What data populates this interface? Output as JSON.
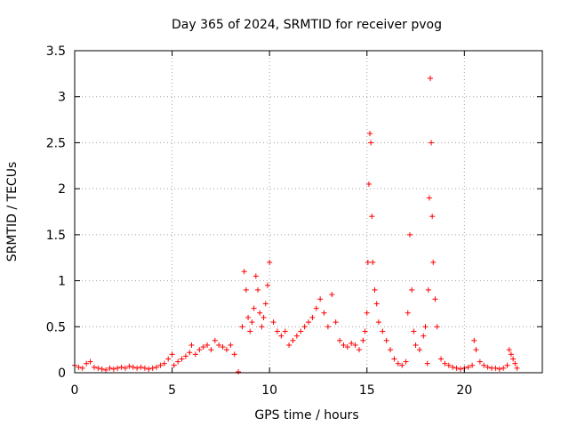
{
  "chart_data": {
    "type": "scatter",
    "title": "Day 365 of 2024, SRMTID for receiver pvog",
    "xlabel": "GPS time / hours",
    "ylabel": "SRMTID / TECUs",
    "xlim": [
      0,
      24
    ],
    "ylim": [
      0,
      3.5
    ],
    "xticks": [
      0,
      5,
      10,
      15,
      20
    ],
    "yticks": [
      0,
      0.5,
      1,
      1.5,
      2,
      2.5,
      3,
      3.5
    ],
    "xtick_labels": [
      "0",
      "5",
      "10",
      "15",
      "20"
    ],
    "ytick_labels": [
      "0",
      "0.5",
      "1",
      "1.5",
      "2",
      "2.5",
      "3",
      "3.5"
    ],
    "grid": true,
    "marker": "+",
    "color": "#ff0000",
    "series": [
      {
        "name": "SRMTID",
        "x": [
          0.0,
          0.2,
          0.4,
          0.6,
          0.8,
          1.0,
          1.2,
          1.4,
          1.6,
          1.8,
          2.0,
          2.2,
          2.4,
          2.6,
          2.8,
          3.0,
          3.2,
          3.4,
          3.6,
          3.8,
          4.0,
          4.2,
          4.4,
          4.6,
          4.8,
          5.0,
          5.1,
          5.3,
          5.5,
          5.7,
          5.9,
          6.0,
          6.2,
          6.4,
          6.6,
          6.8,
          7.0,
          7.2,
          7.4,
          7.6,
          7.8,
          8.0,
          8.2,
          8.4,
          8.6,
          8.7,
          8.8,
          8.9,
          9.0,
          9.1,
          9.2,
          9.3,
          9.4,
          9.5,
          9.6,
          9.7,
          9.8,
          9.9,
          10.0,
          10.2,
          10.4,
          10.6,
          10.8,
          11.0,
          11.2,
          11.4,
          11.6,
          11.8,
          12.0,
          12.2,
          12.4,
          12.6,
          12.8,
          13.0,
          13.2,
          13.4,
          13.6,
          13.8,
          14.0,
          14.2,
          14.4,
          14.6,
          14.8,
          14.9,
          15.0,
          15.05,
          15.1,
          15.15,
          15.2,
          15.25,
          15.3,
          15.4,
          15.5,
          15.6,
          15.8,
          16.0,
          16.2,
          16.4,
          16.6,
          16.8,
          17.0,
          17.1,
          17.2,
          17.3,
          17.4,
          17.5,
          17.7,
          17.9,
          18.0,
          18.1,
          18.15,
          18.2,
          18.25,
          18.3,
          18.35,
          18.4,
          18.5,
          18.6,
          18.8,
          19.0,
          19.2,
          19.4,
          19.6,
          19.8,
          20.0,
          20.2,
          20.4,
          20.5,
          20.6,
          20.8,
          21.0,
          21.2,
          21.4,
          21.6,
          21.8,
          22.0,
          22.2,
          22.3,
          22.4,
          22.5,
          22.6,
          22.7
        ],
        "y": [
          0.08,
          0.06,
          0.05,
          0.1,
          0.12,
          0.06,
          0.05,
          0.04,
          0.03,
          0.05,
          0.04,
          0.05,
          0.06,
          0.05,
          0.07,
          0.06,
          0.05,
          0.06,
          0.05,
          0.04,
          0.05,
          0.06,
          0.08,
          0.1,
          0.15,
          0.2,
          0.08,
          0.12,
          0.15,
          0.18,
          0.22,
          0.3,
          0.2,
          0.25,
          0.28,
          0.3,
          0.25,
          0.35,
          0.3,
          0.28,
          0.25,
          0.3,
          0.2,
          0.01,
          0.5,
          1.1,
          0.9,
          0.6,
          0.45,
          0.55,
          0.7,
          1.05,
          0.9,
          0.65,
          0.5,
          0.6,
          0.75,
          0.95,
          1.2,
          0.55,
          0.45,
          0.4,
          0.45,
          0.3,
          0.35,
          0.4,
          0.45,
          0.5,
          0.55,
          0.6,
          0.7,
          0.8,
          0.65,
          0.5,
          0.85,
          0.55,
          0.35,
          0.3,
          0.28,
          0.32,
          0.3,
          0.25,
          0.35,
          0.45,
          0.65,
          1.2,
          2.05,
          2.6,
          2.5,
          1.7,
          1.2,
          0.9,
          0.75,
          0.55,
          0.45,
          0.35,
          0.25,
          0.15,
          0.1,
          0.08,
          0.12,
          0.65,
          1.5,
          0.9,
          0.45,
          0.3,
          0.25,
          0.4,
          0.5,
          0.1,
          0.9,
          1.9,
          3.2,
          2.5,
          1.7,
          1.2,
          0.8,
          0.5,
          0.15,
          0.1,
          0.08,
          0.06,
          0.05,
          0.04,
          0.05,
          0.06,
          0.08,
          0.35,
          0.25,
          0.12,
          0.08,
          0.06,
          0.05,
          0.05,
          0.04,
          0.05,
          0.08,
          0.25,
          0.2,
          0.15,
          0.1,
          0.05
        ]
      }
    ]
  }
}
